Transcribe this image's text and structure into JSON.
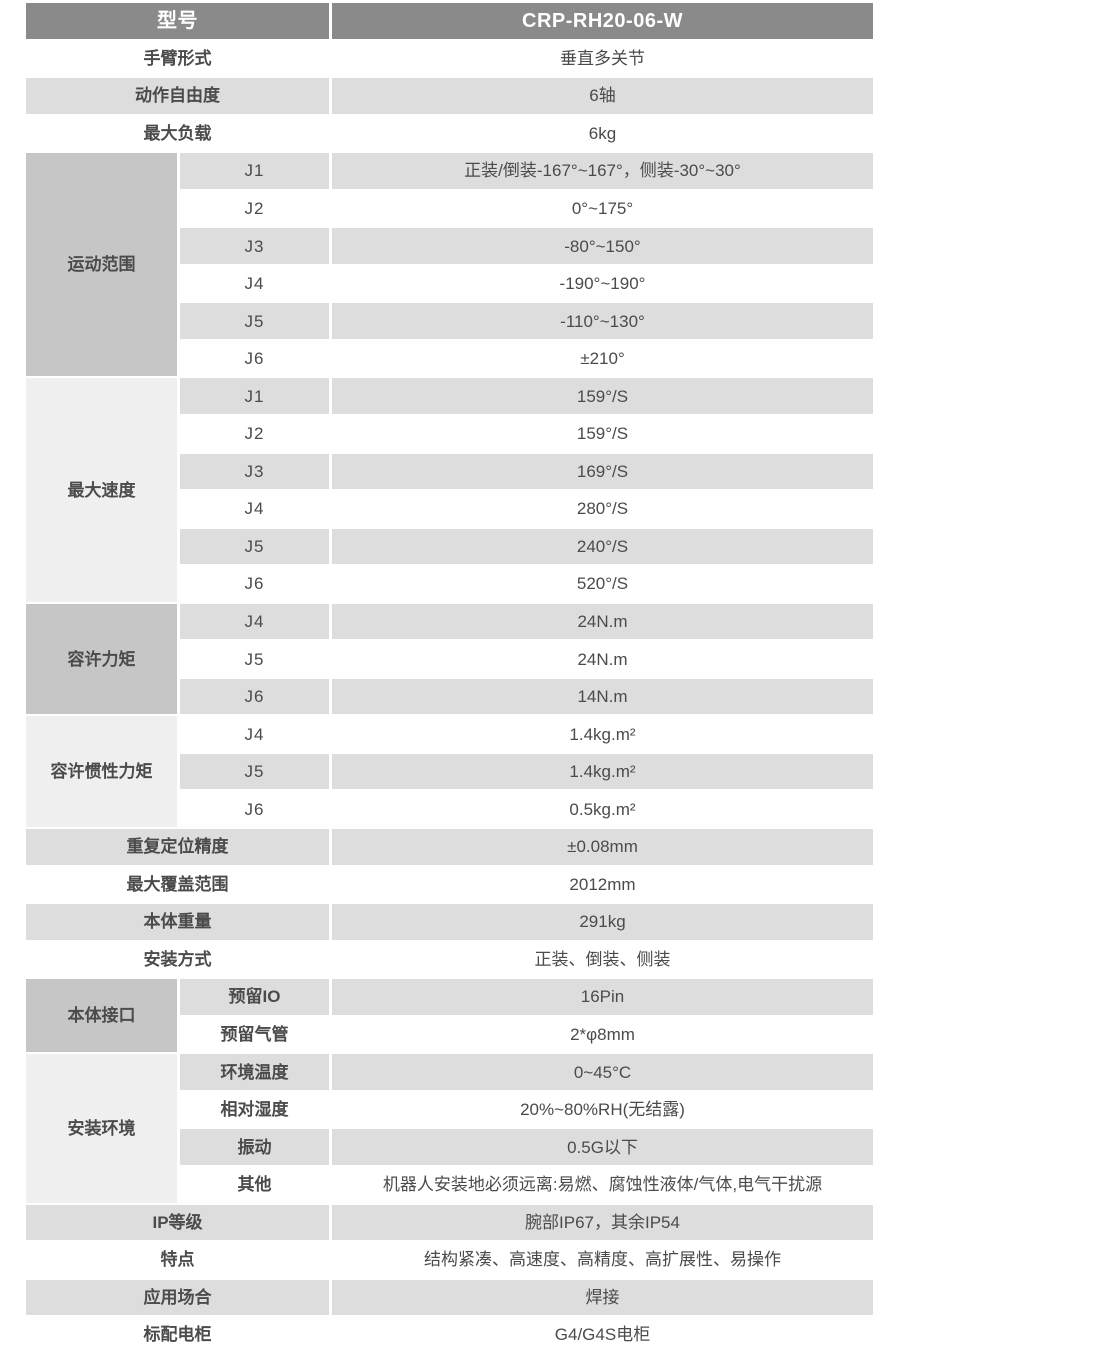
{
  "colors": {
    "header-bg": "#8a8a8a",
    "header-text": "#ffffff",
    "row-gray": "#dddddd",
    "group-dark": "#c6c6c6",
    "group-light": "#efefef",
    "text": "#4b4b4b"
  },
  "model": {
    "label": "型号",
    "value": "CRP-RH20-06-W"
  },
  "rows_top": [
    {
      "label": "手臂形式",
      "value": "垂直多关节"
    },
    {
      "label": "动作自由度",
      "value": "6轴"
    },
    {
      "label": "最大负载",
      "value": "6kg"
    }
  ],
  "groups": [
    {
      "title": "运动范围",
      "rows": [
        {
          "joint": "J1",
          "value": "正装/倒装-167°~167°，侧装-30°~30°"
        },
        {
          "joint": "J2",
          "value": "0°~175°"
        },
        {
          "joint": "J3",
          "value": "-80°~150°"
        },
        {
          "joint": "J4",
          "value": "-190°~190°"
        },
        {
          "joint": "J5",
          "value": "-110°~130°"
        },
        {
          "joint": "J6",
          "value": "±210°"
        }
      ]
    },
    {
      "title": "最大速度",
      "rows": [
        {
          "joint": "J1",
          "value": "159°/S"
        },
        {
          "joint": "J2",
          "value": "159°/S"
        },
        {
          "joint": "J3",
          "value": "169°/S"
        },
        {
          "joint": "J4",
          "value": "280°/S"
        },
        {
          "joint": "J5",
          "value": "240°/S"
        },
        {
          "joint": "J6",
          "value": "520°/S"
        }
      ]
    },
    {
      "title": "容许力矩",
      "rows": [
        {
          "joint": "J4",
          "value": "24N.m"
        },
        {
          "joint": "J5",
          "value": "24N.m"
        },
        {
          "joint": "J6",
          "value": "14N.m"
        }
      ]
    },
    {
      "title": "容许惯性力矩",
      "rows": [
        {
          "joint": "J4",
          "value": "1.4kg.m²"
        },
        {
          "joint": "J5",
          "value": "1.4kg.m²"
        },
        {
          "joint": "J6",
          "value": "0.5kg.m²"
        }
      ]
    }
  ],
  "rows_mid": [
    {
      "label": "重复定位精度",
      "value": "±0.08mm"
    },
    {
      "label": "最大覆盖范围",
      "value": "2012mm"
    },
    {
      "label": "本体重量",
      "value": "291kg"
    },
    {
      "label": "安装方式",
      "value": "正装、倒装、侧装"
    }
  ],
  "groups2": [
    {
      "title": "本体接口",
      "rows": [
        {
          "sub": "预留IO",
          "value": "16Pin"
        },
        {
          "sub": "预留气管",
          "value": "2*φ8mm"
        }
      ]
    },
    {
      "title": "安装环境",
      "rows": [
        {
          "sub": "环境温度",
          "value": "0~45°C"
        },
        {
          "sub": "相对湿度",
          "value": "20%~80%RH(无结露)"
        },
        {
          "sub": "振动",
          "value": "0.5G以下"
        },
        {
          "sub": "其他",
          "value": "机器人安装地必须远离:易燃、腐蚀性液体/气体,电气干扰源"
        }
      ]
    }
  ],
  "rows_bottom": [
    {
      "label": "IP等级",
      "value": "腕部IP67，其余IP54"
    },
    {
      "label": "特点",
      "value": "结构紧凑、高速度、高精度、高扩展性、易操作"
    },
    {
      "label": "应用场合",
      "value": "焊接"
    },
    {
      "label": "标配电柜",
      "value": "G4/G4S电柜"
    }
  ]
}
